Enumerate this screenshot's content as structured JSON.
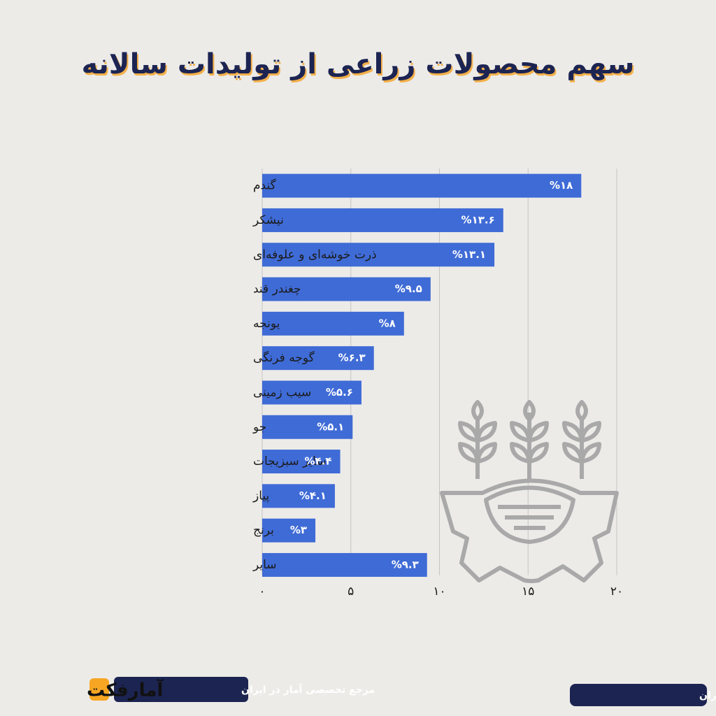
{
  "chart_data": {
    "type": "bar",
    "orientation": "horizontal",
    "title": "سهم محصولات زراعی از تولیدات سالانه",
    "categories": [
      "گندم",
      "نیشکر",
      "ذرت خوشه‌ای و علوفه‌ای",
      "چغندر قند",
      "یونجه",
      "گوجه فرنگی",
      "سیب زمینی",
      "جو",
      "سایر سبزیجات",
      "پیاز",
      "برنج",
      "سایر"
    ],
    "values": [
      18,
      13.6,
      13.1,
      9.5,
      8,
      6.3,
      5.6,
      5.1,
      4.4,
      4.1,
      3,
      9.3
    ],
    "value_labels": [
      "%۱۸",
      "%۱۳.۶",
      "%۱۳.۱",
      "%۹.۵",
      "%۸",
      "%۶.۳",
      "%۵.۶",
      "%۵.۱",
      "%۴.۴",
      "%۴.۱",
      "%۳",
      "%۹.۳"
    ],
    "color": "#3f6bd6",
    "xlim": [
      0,
      20
    ],
    "xticks": [
      {
        "value": 0,
        "label": "۰"
      },
      {
        "value": 5,
        "label": "۵"
      },
      {
        "value": 10,
        "label": "۱۰"
      },
      {
        "value": 15,
        "label": "۱۵"
      },
      {
        "value": 20,
        "label": "۲۰"
      }
    ],
    "grid": true
  },
  "footer": {
    "source": "منبع: مرکز آمار ایران",
    "tagline": "مرجع تخصصی آمار در ایران",
    "brand": "آمارفکت"
  }
}
